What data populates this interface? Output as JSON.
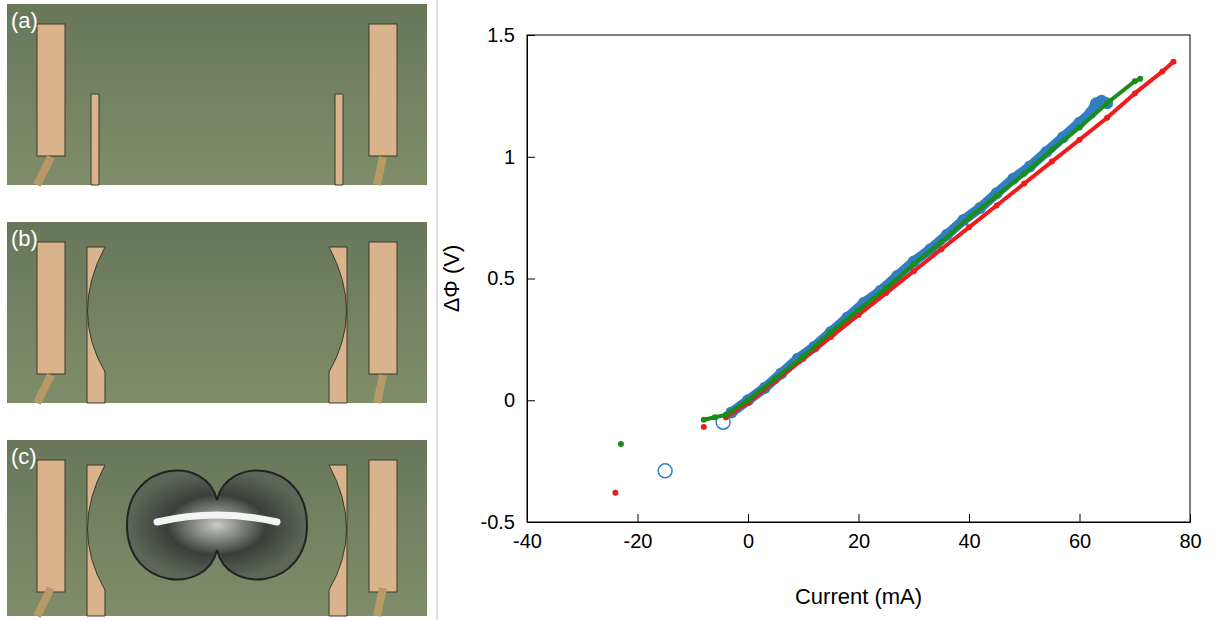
{
  "figure_labels": [
    "(a)",
    "(b)",
    "(c)"
  ],
  "chart_data": {
    "type": "scatter",
    "x_label": "Current (mA)",
    "y_label": "ΔΦ (V)",
    "xlim": [
      -40,
      80
    ],
    "ylim": [
      -0.5,
      1.5
    ],
    "xticks": [
      -40,
      -20,
      0,
      20,
      40,
      60,
      80
    ],
    "yticks": [
      -0.5,
      0,
      0.5,
      1,
      1.5
    ],
    "grid": false,
    "series": [
      {
        "color": "#2f7fc1",
        "marker": "circle",
        "line_style": "solid",
        "x": [
          -3,
          0,
          3,
          6,
          9,
          12,
          15,
          18,
          21,
          24,
          27,
          30,
          33,
          36,
          39,
          42,
          45,
          48,
          51,
          54,
          57,
          60,
          62,
          63,
          64,
          65
        ],
        "values": [
          -0.05,
          0.0,
          0.05,
          0.11,
          0.17,
          0.22,
          0.28,
          0.34,
          0.4,
          0.45,
          0.51,
          0.57,
          0.62,
          0.68,
          0.74,
          0.79,
          0.85,
          0.91,
          0.96,
          1.02,
          1.08,
          1.14,
          1.18,
          1.22,
          1.23,
          1.22
        ]
      },
      {
        "color": "#2f7fc1",
        "marker": "open-circle",
        "line_style": "none",
        "x": [
          -15,
          -4.5
        ],
        "values": [
          -0.29,
          -0.09
        ]
      },
      {
        "color": "#ee1c1c",
        "marker": "circle",
        "line_style": "solid",
        "x": [
          -4,
          0,
          5,
          10,
          15,
          20,
          25,
          30,
          35,
          40,
          45,
          50,
          55,
          60,
          65,
          70,
          75,
          77
        ],
        "values": [
          -0.07,
          -0.01,
          0.08,
          0.17,
          0.26,
          0.35,
          0.44,
          0.53,
          0.62,
          0.71,
          0.8,
          0.89,
          0.98,
          1.07,
          1.16,
          1.26,
          1.35,
          1.39
        ]
      },
      {
        "color": "#ee1c1c",
        "marker": "circle",
        "line_style": "none",
        "x": [
          -24,
          -8
        ],
        "values": [
          -0.38,
          -0.11
        ]
      },
      {
        "color": "#1a8c1a",
        "marker": "circle",
        "line_style": "solid",
        "x": [
          -8,
          -6,
          -4,
          0,
          5,
          10,
          15,
          20,
          25,
          30,
          35,
          40,
          45,
          50,
          55,
          60,
          65,
          70,
          71
        ],
        "values": [
          -0.08,
          -0.07,
          -0.06,
          0.0,
          0.09,
          0.18,
          0.28,
          0.37,
          0.46,
          0.56,
          0.65,
          0.75,
          0.84,
          0.93,
          1.03,
          1.12,
          1.22,
          1.31,
          1.32
        ]
      },
      {
        "color": "#1a8c1a",
        "marker": "circle",
        "line_style": "none",
        "x": [
          -23
        ],
        "values": [
          -0.18
        ]
      }
    ]
  }
}
